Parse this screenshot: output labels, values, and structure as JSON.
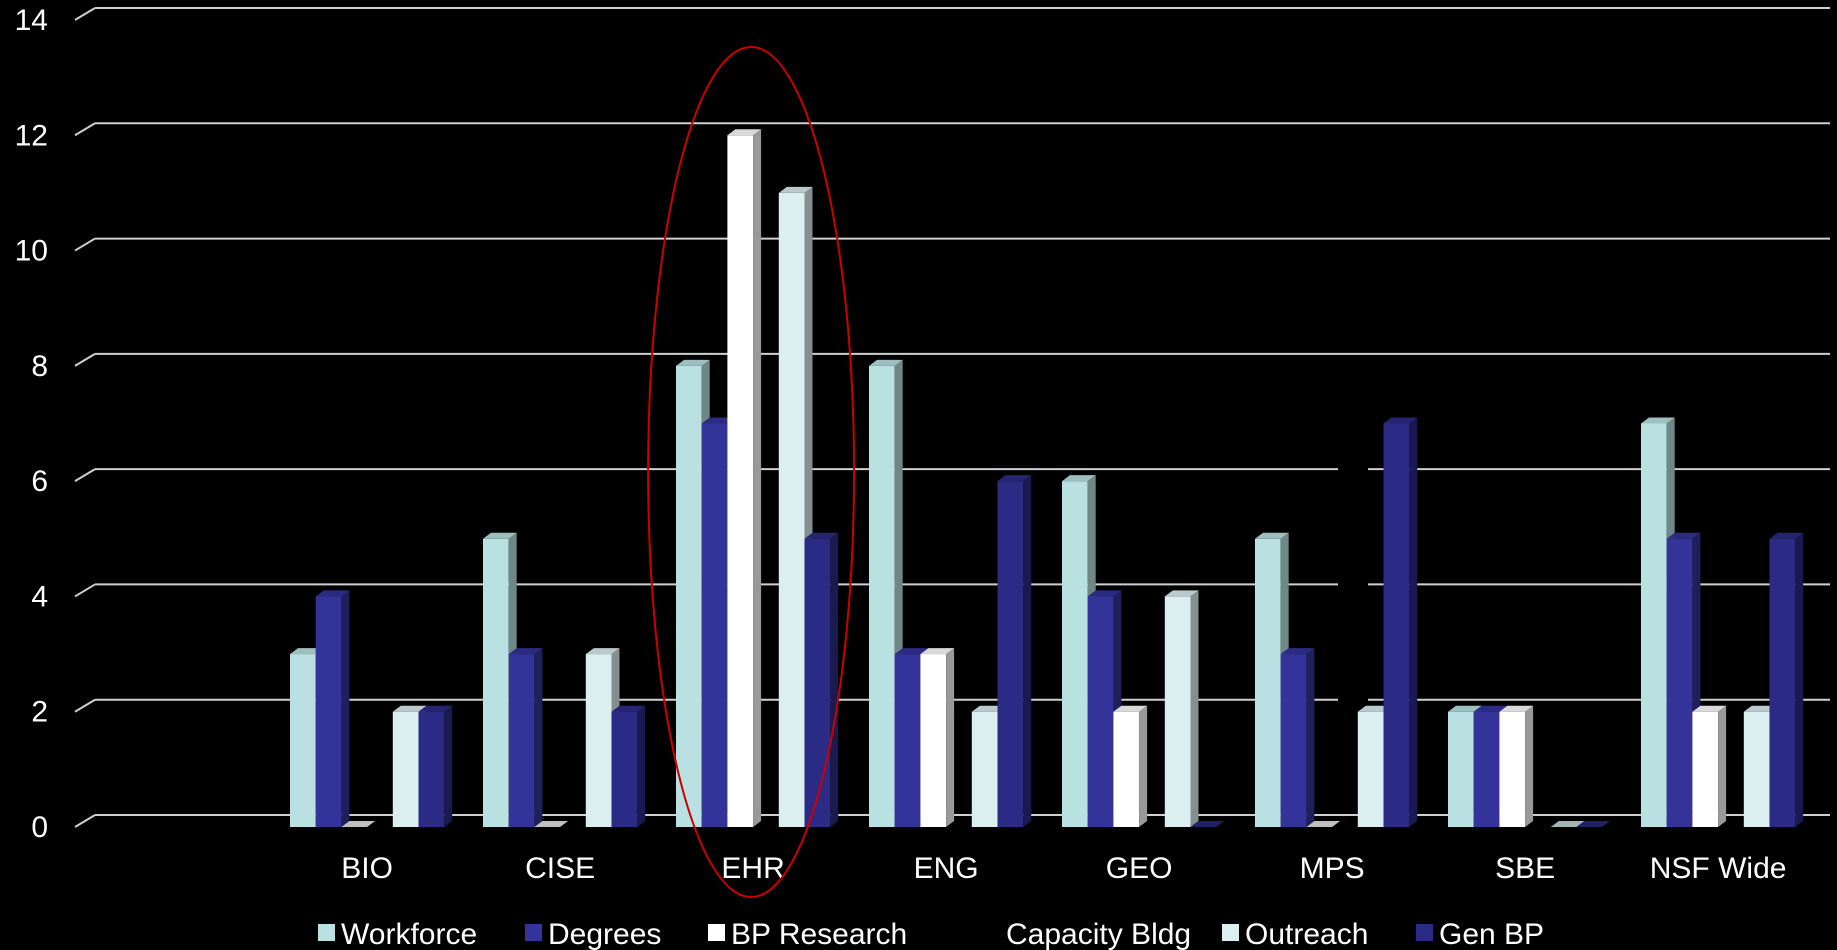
{
  "chart_data": {
    "type": "bar",
    "title": "",
    "xlabel": "",
    "ylabel": "",
    "ylim": [
      0,
      14
    ],
    "yticks": [
      0,
      2,
      4,
      6,
      8,
      10,
      12,
      14
    ],
    "grid": true,
    "legend": "bottom",
    "categories": [
      "BIO",
      "CISE",
      "EHR",
      "ENG",
      "GEO",
      "MPS",
      "SBE",
      "NSF Wide"
    ],
    "series": [
      {
        "name": "Workforce",
        "color": "#b9e1e1",
        "values": [
          3,
          5,
          8,
          8,
          6,
          5,
          2,
          7
        ]
      },
      {
        "name": "Degrees",
        "color": "#333399",
        "values": [
          4,
          3,
          7,
          3,
          4,
          3,
          2,
          5
        ]
      },
      {
        "name": "BP Research",
        "color": "#ffffff",
        "values": [
          0,
          0,
          12,
          3,
          2,
          0,
          2,
          2
        ]
      },
      {
        "name": "Capacity Bldg",
        "color": "#000000",
        "values": [
          0,
          0,
          0,
          0,
          0,
          0,
          0,
          0
        ]
      },
      {
        "name": "Outreach",
        "color": "#dbeef0",
        "values": [
          2,
          3,
          11,
          2,
          4,
          2,
          0,
          2
        ]
      },
      {
        "name": "Gen BP",
        "color": "#2b2b85",
        "values": [
          2,
          2,
          5,
          6,
          0,
          7,
          0,
          5
        ]
      }
    ],
    "annotations": [
      {
        "type": "ellipse",
        "category": "EHR",
        "color": "#cc0000"
      }
    ]
  }
}
